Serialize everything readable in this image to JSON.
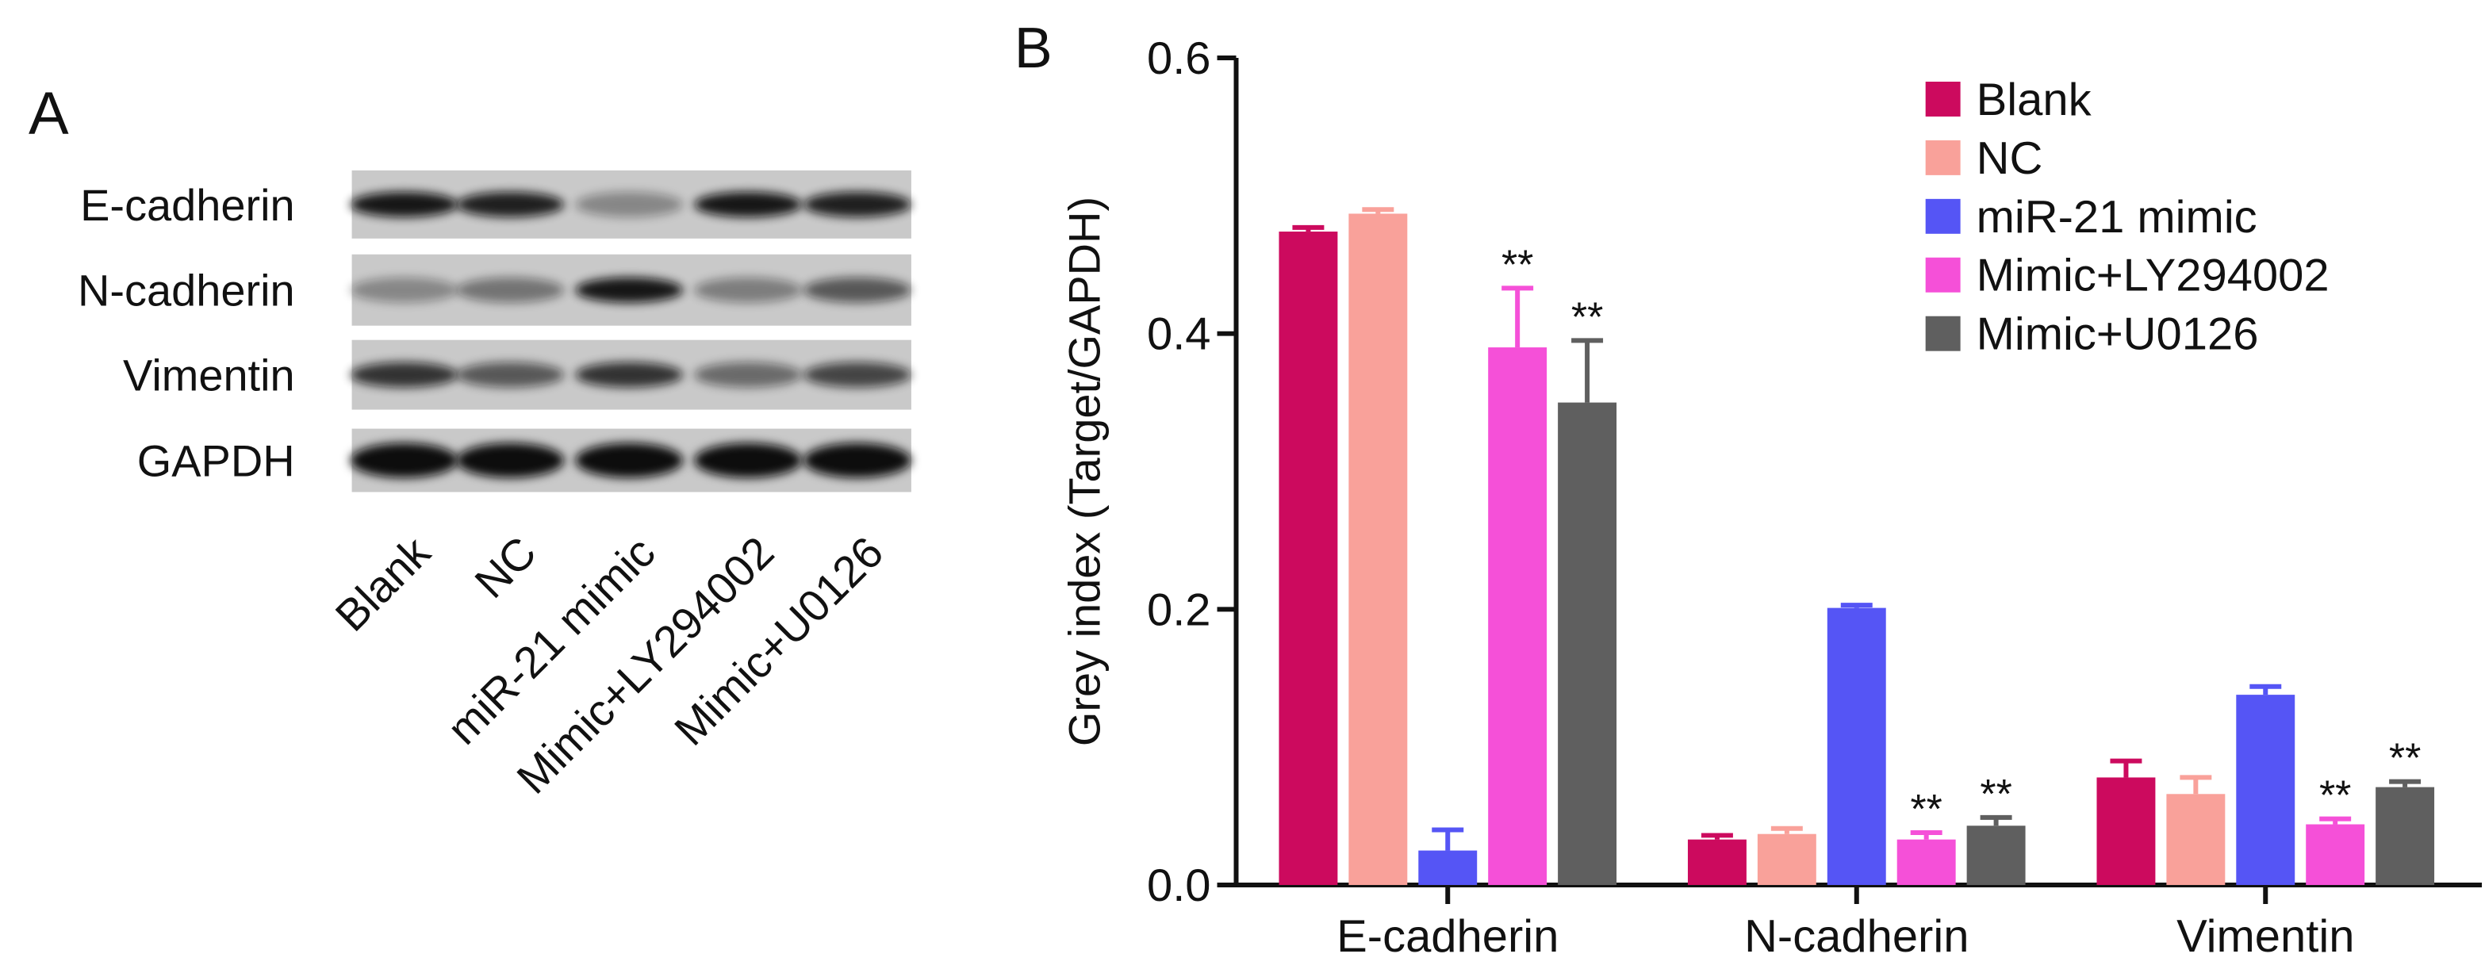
{
  "panel_a": {
    "label": "A",
    "rows": [
      "E-cadherin",
      "N-cadherin",
      "Vimentin",
      "GAPDH"
    ],
    "lanes": [
      "Blank",
      "NC",
      "miR-21 mimic",
      "Mimic+LY294002",
      "Mimic+U0126"
    ]
  },
  "chart_data": {
    "type": "bar",
    "panel_label": "B",
    "y_label": "Grey index (Target/GAPDH)",
    "categories": [
      "E-cadherin",
      "N-cadherin",
      "Vimentin"
    ],
    "ylim": [
      0,
      0.6
    ],
    "yticks": [
      {
        "value": 0,
        "label": "0.0"
      },
      {
        "value": 0.2,
        "label": "0.2"
      },
      {
        "value": 0.4,
        "label": "0.4"
      },
      {
        "value": 0.6,
        "label": "0.6"
      }
    ],
    "legend": "upper right",
    "series": [
      {
        "name": "Blank",
        "color": "#cc0a5e",
        "values": [
          0.474,
          0.033,
          0.078
        ],
        "errors": [
          0.003,
          0.003,
          0.012
        ],
        "labels": [
          null,
          null,
          null
        ]
      },
      {
        "name": "NC",
        "color": "#f9a19a",
        "values": [
          0.487,
          0.037,
          0.066
        ],
        "errors": [
          0.003,
          0.004,
          0.012
        ],
        "labels": [
          null,
          null,
          null
        ]
      },
      {
        "name": "miR-21 mimic",
        "color": "#5555f5",
        "values": [
          0.025,
          0.201,
          0.138
        ],
        "errors": [
          0.015,
          0.002,
          0.006
        ],
        "labels": [
          null,
          null,
          null
        ]
      },
      {
        "name": "Mimic+LY294002",
        "color": "#f550d8",
        "values": [
          0.39,
          0.033,
          0.044
        ],
        "errors": [
          0.043,
          0.005,
          0.004
        ],
        "labels": [
          "**",
          "**",
          "**"
        ]
      },
      {
        "name": "Mimic+U0126",
        "color": "#5f5f5f",
        "values": [
          0.35,
          0.043,
          0.071
        ],
        "errors": [
          0.045,
          0.006,
          0.004
        ],
        "labels": [
          "**",
          "**",
          "**"
        ]
      }
    ]
  }
}
